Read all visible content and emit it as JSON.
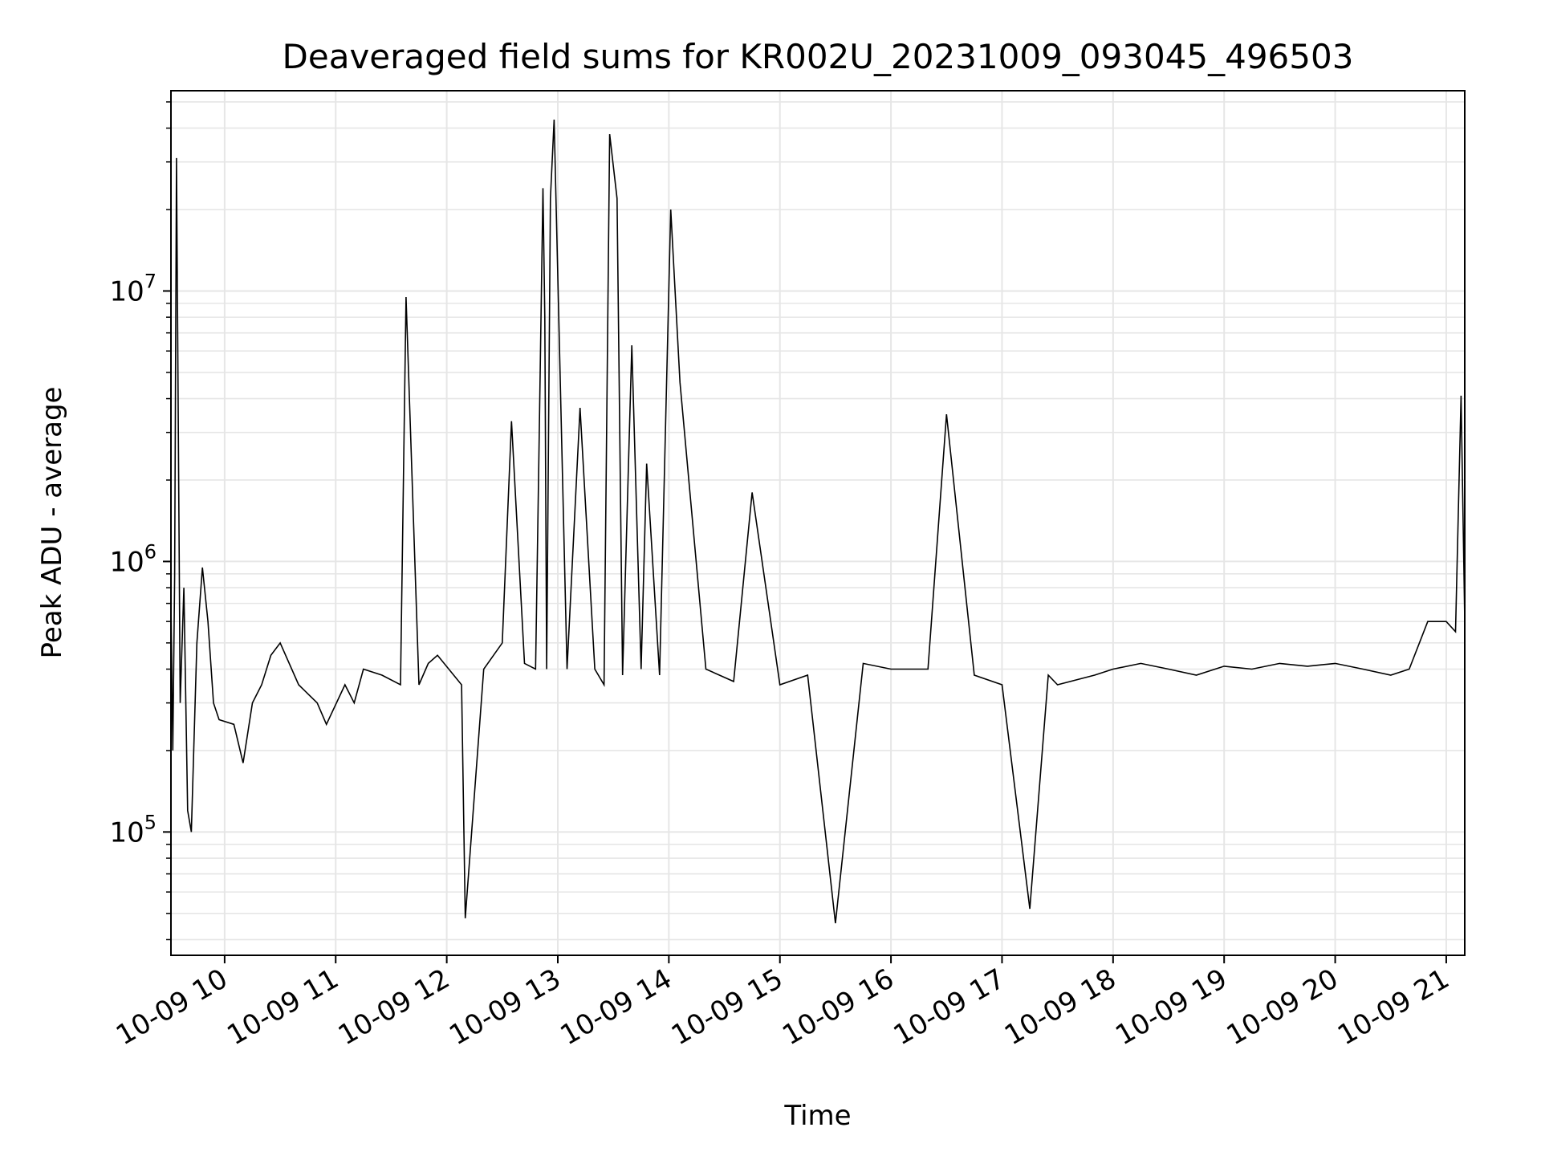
{
  "chart_data": {
    "type": "line",
    "title": "Deaveraged field sums for KR002U_20231009_093045_496503",
    "xlabel": "Time",
    "ylabel": "Peak ADU - average",
    "y_scale": "log",
    "ylim": [
      35000,
      55000000
    ],
    "xlim": [
      "2023-10-09 09:31",
      "2023-10-09 21:10"
    ],
    "grid": true,
    "line_color": "#000000",
    "grid_color": "#e6e6e6",
    "x_ticks": [
      {
        "value": "2023-10-09 10:00",
        "label": "10-09 10"
      },
      {
        "value": "2023-10-09 11:00",
        "label": "10-09 11"
      },
      {
        "value": "2023-10-09 12:00",
        "label": "10-09 12"
      },
      {
        "value": "2023-10-09 13:00",
        "label": "10-09 13"
      },
      {
        "value": "2023-10-09 14:00",
        "label": "10-09 14"
      },
      {
        "value": "2023-10-09 15:00",
        "label": "10-09 15"
      },
      {
        "value": "2023-10-09 16:00",
        "label": "10-09 16"
      },
      {
        "value": "2023-10-09 17:00",
        "label": "10-09 17"
      },
      {
        "value": "2023-10-09 18:00",
        "label": "10-09 18"
      },
      {
        "value": "2023-10-09 19:00",
        "label": "10-09 19"
      },
      {
        "value": "2023-10-09 20:00",
        "label": "10-09 20"
      },
      {
        "value": "2023-10-09 21:00",
        "label": "10-09 21"
      }
    ],
    "y_ticks": [
      {
        "value": 100000,
        "base": "10",
        "exp": "5"
      },
      {
        "value": 1000000,
        "base": "10",
        "exp": "6"
      },
      {
        "value": 10000000,
        "base": "10",
        "exp": "7"
      }
    ],
    "series": [
      {
        "x": [
          "2023-10-09 09:31",
          "2023-10-09 09:32",
          "2023-10-09 09:33",
          "2023-10-09 09:34",
          "2023-10-09 09:36",
          "2023-10-09 09:38",
          "2023-10-09 09:40",
          "2023-10-09 09:42",
          "2023-10-09 09:45",
          "2023-10-09 09:48",
          "2023-10-09 09:51",
          "2023-10-09 09:54",
          "2023-10-09 09:57",
          "2023-10-09 10:05",
          "2023-10-09 10:10",
          "2023-10-09 10:15",
          "2023-10-09 10:20",
          "2023-10-09 10:25",
          "2023-10-09 10:30",
          "2023-10-09 10:40",
          "2023-10-09 10:50",
          "2023-10-09 10:55",
          "2023-10-09 11:05",
          "2023-10-09 11:10",
          "2023-10-09 11:15",
          "2023-10-09 11:25",
          "2023-10-09 11:35",
          "2023-10-09 11:38",
          "2023-10-09 11:45",
          "2023-10-09 11:50",
          "2023-10-09 11:55",
          "2023-10-09 12:08",
          "2023-10-09 12:10",
          "2023-10-09 12:20",
          "2023-10-09 12:30",
          "2023-10-09 12:35",
          "2023-10-09 12:42",
          "2023-10-09 12:48",
          "2023-10-09 12:50",
          "2023-10-09 12:52",
          "2023-10-09 12:53",
          "2023-10-09 12:54",
          "2023-10-09 12:56",
          "2023-10-09 12:58",
          "2023-10-09 13:05",
          "2023-10-09 13:12",
          "2023-10-09 13:20",
          "2023-10-09 13:25",
          "2023-10-09 13:28",
          "2023-10-09 13:32",
          "2023-10-09 13:35",
          "2023-10-09 13:40",
          "2023-10-09 13:45",
          "2023-10-09 13:48",
          "2023-10-09 13:55",
          "2023-10-09 14:01",
          "2023-10-09 14:06",
          "2023-10-09 14:20",
          "2023-10-09 14:35",
          "2023-10-09 14:45",
          "2023-10-09 15:00",
          "2023-10-09 15:15",
          "2023-10-09 15:30",
          "2023-10-09 15:45",
          "2023-10-09 16:00",
          "2023-10-09 16:20",
          "2023-10-09 16:30",
          "2023-10-09 16:45",
          "2023-10-09 17:00",
          "2023-10-09 17:15",
          "2023-10-09 17:25",
          "2023-10-09 17:30",
          "2023-10-09 17:50",
          "2023-10-09 18:00",
          "2023-10-09 18:15",
          "2023-10-09 18:30",
          "2023-10-09 18:45",
          "2023-10-09 19:00",
          "2023-10-09 19:15",
          "2023-10-09 19:30",
          "2023-10-09 19:45",
          "2023-10-09 20:00",
          "2023-10-09 20:15",
          "2023-10-09 20:30",
          "2023-10-09 20:40",
          "2023-10-09 20:50",
          "2023-10-09 21:00",
          "2023-10-09 21:05",
          "2023-10-09 21:08",
          "2023-10-09 21:10"
        ],
        "y": [
          700000,
          200000,
          880000,
          31000000,
          300000,
          800000,
          120000,
          100000,
          500000,
          950000,
          600000,
          300000,
          260000,
          250000,
          180000,
          300000,
          350000,
          450000,
          500000,
          350000,
          300000,
          250000,
          350000,
          300000,
          400000,
          380000,
          350000,
          9500000,
          350000,
          420000,
          450000,
          350000,
          48000,
          400000,
          500000,
          3300000,
          420000,
          400000,
          3000000,
          24000000,
          8000000,
          400000,
          22000000,
          43000000,
          400000,
          3700000,
          400000,
          350000,
          38000000,
          22000000,
          380000,
          6300000,
          400000,
          2300000,
          380000,
          20000000,
          4600000,
          400000,
          360000,
          1800000,
          350000,
          380000,
          46000,
          420000,
          400000,
          400000,
          3500000,
          380000,
          350000,
          52000,
          380000,
          350000,
          380000,
          400000,
          420000,
          400000,
          380000,
          410000,
          400000,
          420000,
          410000,
          420000,
          400000,
          380000,
          400000,
          600000,
          600000,
          550000,
          4100000,
          600000
        ]
      }
    ]
  }
}
